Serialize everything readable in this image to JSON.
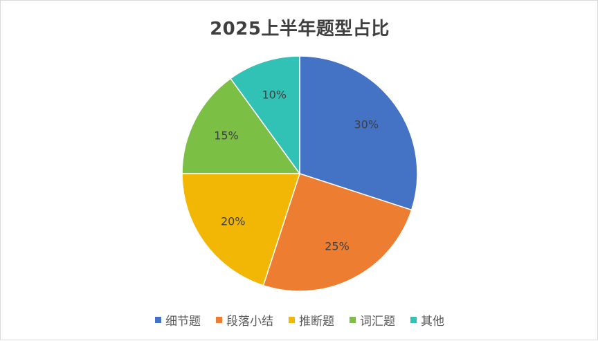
{
  "chart_data": {
    "type": "pie",
    "title": "2025上半年题型占比",
    "categories": [
      "细节题",
      "段落小结",
      "推断题",
      "词汇题",
      "其他"
    ],
    "values": [
      30,
      25,
      20,
      15,
      10
    ],
    "labels": [
      "30%",
      "25%",
      "20%",
      "15%",
      "10%"
    ],
    "colors": [
      "#4472C4",
      "#ED7D31",
      "#F2B705",
      "#7BBF45",
      "#31C2B5"
    ],
    "legend_position": "bottom",
    "start_angle": "12 o'clock",
    "direction": "clockwise"
  }
}
